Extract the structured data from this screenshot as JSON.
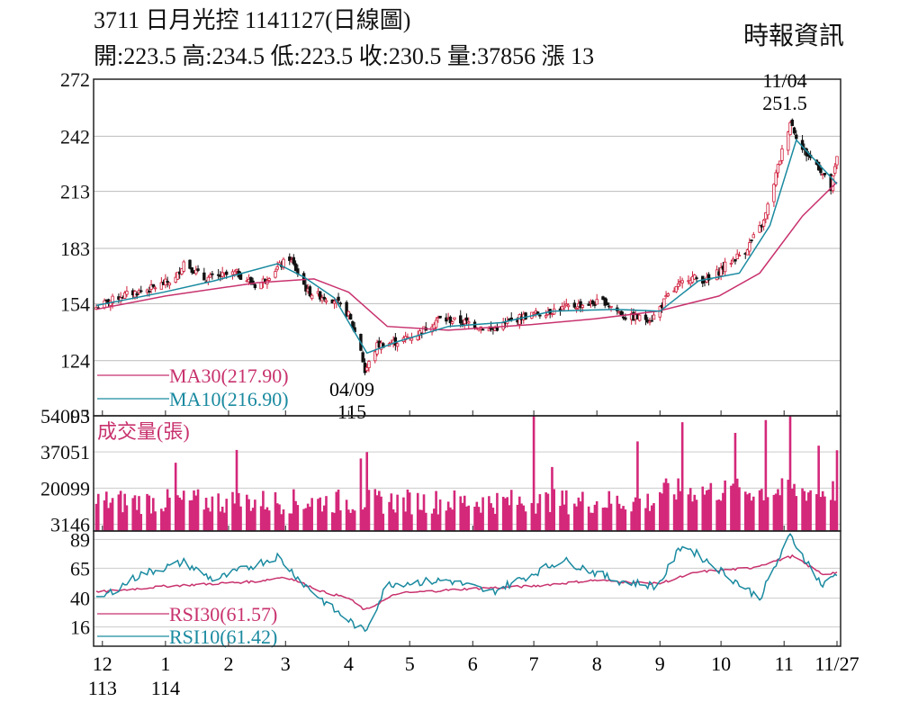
{
  "header": {
    "title": "3711  日月光控 1141127(日線圖)",
    "ohlc": "開:223.5 高:234.5 低:223.5 收:230.5 量:37856 漲 13",
    "source": "時報資訊"
  },
  "chart_data": [
    {
      "type": "candlestick",
      "panel": "price",
      "y_ticks": [
        "272",
        "242",
        "213",
        "183",
        "154",
        "124",
        "95"
      ],
      "ylim": [
        95,
        272
      ],
      "x_ticks": [
        {
          "label": "12",
          "sub": "113",
          "date": "2024-12-01"
        },
        {
          "label": "1",
          "sub": "114",
          "date": "2025-01-01"
        },
        {
          "label": "2",
          "sub": "",
          "date": "2025-02-01"
        },
        {
          "label": "3",
          "sub": "",
          "date": "2025-03-01"
        },
        {
          "label": "4",
          "sub": "",
          "date": "2025-04-01"
        },
        {
          "label": "5",
          "sub": "",
          "date": "2025-05-01"
        },
        {
          "label": "6",
          "sub": "",
          "date": "2025-06-01"
        },
        {
          "label": "7",
          "sub": "",
          "date": "2025-07-01"
        },
        {
          "label": "8",
          "sub": "",
          "date": "2025-08-01"
        },
        {
          "label": "9",
          "sub": "",
          "date": "2025-09-01"
        },
        {
          "label": "10",
          "sub": "",
          "date": "2025-10-01"
        },
        {
          "label": "11",
          "sub": "",
          "date": "2025-11-01"
        },
        {
          "label": "11/27",
          "sub": "",
          "date": "2025-11-27"
        }
      ],
      "close_path": [
        [
          "2024-11-28",
          152
        ],
        [
          "2024-12-10",
          158
        ],
        [
          "2024-12-25",
          162
        ],
        [
          "2025-01-06",
          167
        ],
        [
          "2025-01-10",
          176
        ],
        [
          "2025-01-20",
          167
        ],
        [
          "2025-02-05",
          170
        ],
        [
          "2025-02-15",
          163
        ],
        [
          "2025-02-24",
          172
        ],
        [
          "2025-03-03",
          178
        ],
        [
          "2025-03-12",
          160
        ],
        [
          "2025-03-25",
          156
        ],
        [
          "2025-04-01",
          148
        ],
        [
          "2025-04-07",
          130
        ],
        [
          "2025-04-09",
          118
        ],
        [
          "2025-04-15",
          132
        ],
        [
          "2025-04-25",
          134
        ],
        [
          "2025-05-05",
          138
        ],
        [
          "2025-05-15",
          146
        ],
        [
          "2025-05-30",
          144
        ],
        [
          "2025-06-10",
          140
        ],
        [
          "2025-06-25",
          147
        ],
        [
          "2025-07-08",
          150
        ],
        [
          "2025-07-22",
          153
        ],
        [
          "2025-08-05",
          155
        ],
        [
          "2025-08-15",
          147
        ],
        [
          "2025-08-28",
          146
        ],
        [
          "2025-09-05",
          158
        ],
        [
          "2025-09-15",
          168
        ],
        [
          "2025-09-25",
          166
        ],
        [
          "2025-10-03",
          174
        ],
        [
          "2025-10-13",
          182
        ],
        [
          "2025-10-22",
          197
        ],
        [
          "2025-10-30",
          230
        ],
        [
          "2025-11-04",
          250
        ],
        [
          "2025-11-10",
          235
        ],
        [
          "2025-11-18",
          226
        ],
        [
          "2025-11-24",
          214
        ],
        [
          "2025-11-27",
          230.5
        ]
      ],
      "series": [
        {
          "name": "MA30(217.90)",
          "color": "#c8326e",
          "path": [
            [
              "2024-11-28",
              151
            ],
            [
              "2025-01-01",
              158
            ],
            [
              "2025-02-15",
              165
            ],
            [
              "2025-03-15",
              167
            ],
            [
              "2025-04-01",
              160
            ],
            [
              "2025-04-20",
              142
            ],
            [
              "2025-05-20",
              140
            ],
            [
              "2025-06-30",
              143
            ],
            [
              "2025-07-31",
              146
            ],
            [
              "2025-08-31",
              150
            ],
            [
              "2025-09-30",
              158
            ],
            [
              "2025-10-20",
              170
            ],
            [
              "2025-11-10",
              200
            ],
            [
              "2025-11-27",
              217.9
            ]
          ]
        },
        {
          "name": "MA10(216.90)",
          "color": "#1a8aa0",
          "path": [
            [
              "2024-11-28",
              153
            ],
            [
              "2024-12-31",
              160
            ],
            [
              "2025-01-25",
              166
            ],
            [
              "2025-02-25",
              175
            ],
            [
              "2025-03-10",
              168
            ],
            [
              "2025-03-25",
              157
            ],
            [
              "2025-04-10",
              128
            ],
            [
              "2025-04-25",
              134
            ],
            [
              "2025-05-20",
              142
            ],
            [
              "2025-06-15",
              144
            ],
            [
              "2025-07-10",
              150
            ],
            [
              "2025-08-10",
              151
            ],
            [
              "2025-09-01",
              150
            ],
            [
              "2025-09-20",
              166
            ],
            [
              "2025-10-10",
              170
            ],
            [
              "2025-10-25",
              195
            ],
            [
              "2025-11-07",
              240
            ],
            [
              "2025-11-20",
              225
            ],
            [
              "2025-11-27",
              216.9
            ]
          ]
        }
      ],
      "annotations": [
        {
          "date_label": "11/04",
          "value": "251.5"
        },
        {
          "date_label": "04/09",
          "value": "115"
        }
      ]
    },
    {
      "type": "bar",
      "panel": "volume",
      "title": "成交量(張)",
      "y_ticks": [
        "54003",
        "37051",
        "20099",
        "3146"
      ],
      "ylim": [
        0,
        54003
      ],
      "color": "#d4287a",
      "spikes": [
        [
          "2025-01-06",
          32000
        ],
        [
          "2025-02-05",
          38000
        ],
        [
          "2025-04-07",
          34000
        ],
        [
          "2025-04-10",
          37000
        ],
        [
          "2025-07-01",
          54003
        ],
        [
          "2025-07-10",
          30000
        ],
        [
          "2025-08-21",
          42000
        ],
        [
          "2025-09-12",
          51000
        ],
        [
          "2025-10-08",
          46000
        ],
        [
          "2025-10-23",
          52000
        ],
        [
          "2025-11-04",
          54003
        ],
        [
          "2025-11-18",
          40000
        ],
        [
          "2025-11-27",
          37856
        ]
      ]
    },
    {
      "type": "line",
      "panel": "rsi",
      "y_ticks": [
        "89",
        "65",
        "40",
        "16"
      ],
      "ylim": [
        0,
        96
      ],
      "series": [
        {
          "name": "RSI30(61.57)",
          "color": "#c8326e",
          "path": [
            [
              "2024-11-28",
              45
            ],
            [
              "2025-01-01",
              50
            ],
            [
              "2025-02-15",
              54
            ],
            [
              "2025-03-01",
              58
            ],
            [
              "2025-03-20",
              45
            ],
            [
              "2025-04-01",
              40
            ],
            [
              "2025-04-09",
              30
            ],
            [
              "2025-04-25",
              44
            ],
            [
              "2025-05-31",
              48
            ],
            [
              "2025-06-30",
              50
            ],
            [
              "2025-07-31",
              55
            ],
            [
              "2025-08-31",
              52
            ],
            [
              "2025-09-20",
              62
            ],
            [
              "2025-10-15",
              65
            ],
            [
              "2025-11-05",
              75
            ],
            [
              "2025-11-20",
              60
            ],
            [
              "2025-11-27",
              61.57
            ]
          ]
        },
        {
          "name": "RSI10(61.42)",
          "color": "#1a8aa0",
          "path": [
            [
              "2024-11-28",
              38
            ],
            [
              "2024-12-20",
              60
            ],
            [
              "2025-01-10",
              70
            ],
            [
              "2025-01-25",
              55
            ],
            [
              "2025-02-25",
              75
            ],
            [
              "2025-03-10",
              52
            ],
            [
              "2025-03-25",
              30
            ],
            [
              "2025-04-09",
              12
            ],
            [
              "2025-04-20",
              52
            ],
            [
              "2025-05-20",
              55
            ],
            [
              "2025-06-10",
              45
            ],
            [
              "2025-06-30",
              60
            ],
            [
              "2025-07-15",
              72
            ],
            [
              "2025-08-10",
              55
            ],
            [
              "2025-08-31",
              50
            ],
            [
              "2025-09-12",
              85
            ],
            [
              "2025-09-25",
              70
            ],
            [
              "2025-10-20",
              40
            ],
            [
              "2025-11-04",
              92
            ],
            [
              "2025-11-20",
              50
            ],
            [
              "2025-11-27",
              61.42
            ]
          ]
        }
      ]
    }
  ]
}
